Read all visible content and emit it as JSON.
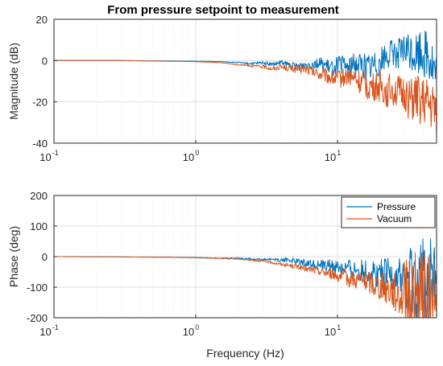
{
  "chart_data": [
    {
      "type": "line",
      "title": "From pressure setpoint to measurement",
      "xlabel": "",
      "ylabel": "Magnitude (dB)",
      "xscale": "log",
      "xlim": [
        0.1,
        50
      ],
      "ylim": [
        -40,
        20
      ],
      "yticks": [
        20,
        0,
        -20,
        -40
      ],
      "xticks": [
        {
          "base": "10",
          "exp": "-1",
          "value": 0.1
        },
        {
          "base": "10",
          "exp": "0",
          "value": 1
        },
        {
          "base": "10",
          "exp": "1",
          "value": 10
        }
      ],
      "grid": true,
      "series": [
        {
          "color": "#0072BD",
          "x": [
            0.1,
            0.3,
            1,
            1.5,
            2,
            2.5,
            3,
            3.5,
            4,
            4.5,
            5,
            6,
            7,
            8,
            9,
            10,
            12,
            14,
            16,
            18,
            20,
            22,
            25,
            28,
            30,
            33,
            36,
            40,
            45,
            50
          ],
          "y": [
            0,
            0,
            -0.3,
            -0.5,
            -1,
            -1.5,
            -1,
            -2,
            -1,
            -2,
            -3,
            -2,
            -1,
            -2,
            -4,
            -2,
            -3,
            -1,
            -3,
            -2,
            0,
            2,
            4,
            3,
            5,
            4,
            3,
            5,
            2,
            -10
          ],
          "noise": [
            0,
            0,
            0,
            0,
            0.3,
            0.5,
            0.8,
            1,
            1.2,
            1.5,
            2,
            2.5,
            3,
            3.5,
            4,
            4.5,
            5,
            6,
            7,
            7,
            7,
            7,
            7,
            8,
            9,
            10,
            11,
            12,
            14,
            15
          ]
        },
        {
          "color": "#D95319",
          "x": [
            0.1,
            0.3,
            1,
            1.5,
            2,
            2.5,
            3,
            3.5,
            4,
            5,
            6,
            7,
            8,
            9,
            10,
            12,
            14,
            16,
            18,
            20,
            22,
            25,
            28,
            30,
            33,
            36,
            40,
            45,
            50
          ],
          "y": [
            0,
            0,
            -0.5,
            -1,
            -2,
            -2.5,
            -3,
            -4,
            -3,
            -4,
            -4,
            -6,
            -7,
            -8,
            -9,
            -7,
            -10,
            -12,
            -13,
            -12,
            -15,
            -13,
            -17,
            -15,
            -20,
            -18,
            -20,
            -22,
            -25
          ],
          "noise": [
            0,
            0,
            0,
            0,
            0.3,
            0.5,
            0.8,
            1,
            1.2,
            2,
            2.5,
            3,
            3.5,
            4,
            4.5,
            5,
            6,
            7,
            7,
            8,
            8,
            9,
            9,
            10,
            11,
            12,
            12,
            13,
            14
          ]
        }
      ]
    },
    {
      "type": "line",
      "xlabel": "Frequency (Hz)",
      "ylabel": "Phase (deg)",
      "xscale": "log",
      "xlim": [
        0.1,
        50
      ],
      "ylim": [
        -200,
        200
      ],
      "yticks": [
        200,
        100,
        0,
        -100,
        -200
      ],
      "xticks": [
        {
          "base": "10",
          "exp": "-1",
          "value": 0.1
        },
        {
          "base": "10",
          "exp": "0",
          "value": 1
        },
        {
          "base": "10",
          "exp": "1",
          "value": 10
        }
      ],
      "grid": true,
      "legend": {
        "placement": "top-right",
        "entries": [
          "Pressure",
          "Vacuum"
        ]
      },
      "series": [
        {
          "name": "Pressure",
          "color": "#0072BD",
          "x": [
            0.1,
            0.3,
            0.6,
            1,
            1.5,
            2,
            2.5,
            3,
            3.5,
            4,
            4.5,
            5,
            6,
            7,
            8,
            9,
            10,
            12,
            14,
            16,
            18,
            20,
            22,
            25,
            28,
            30,
            33,
            36,
            40,
            45,
            50
          ],
          "y": [
            0,
            -1,
            -2,
            -3,
            -5,
            -5,
            -8,
            -10,
            -8,
            -12,
            -10,
            -15,
            -20,
            -25,
            -30,
            -30,
            -35,
            -40,
            -45,
            -50,
            -50,
            -55,
            -60,
            -60,
            -70,
            -75,
            -80,
            -90,
            -100,
            -100,
            -110
          ],
          "noise": [
            0,
            0,
            0,
            0,
            1,
            2,
            3,
            4,
            5,
            6,
            8,
            10,
            12,
            15,
            18,
            22,
            25,
            30,
            35,
            40,
            45,
            50,
            55,
            60,
            70,
            90,
            120,
            150,
            170,
            180,
            180
          ]
        },
        {
          "name": "Vacuum",
          "color": "#D95319",
          "x": [
            0.1,
            0.3,
            0.6,
            1,
            1.5,
            2,
            2.5,
            3,
            3.5,
            4,
            4.5,
            5,
            6,
            7,
            8,
            9,
            10,
            12,
            14,
            16,
            18,
            20,
            22,
            25,
            28,
            30,
            33,
            36,
            40,
            45,
            50
          ],
          "y": [
            0,
            -1,
            -2,
            -4,
            -6,
            -8,
            -12,
            -15,
            -20,
            -25,
            -28,
            -32,
            -40,
            -45,
            -50,
            -55,
            -60,
            -70,
            -75,
            -80,
            -90,
            -95,
            -100,
            -110,
            -120,
            -130,
            -140,
            -150,
            -160,
            -170,
            -175
          ],
          "noise": [
            0,
            0,
            0,
            0,
            1,
            1,
            2,
            3,
            4,
            5,
            6,
            8,
            10,
            12,
            15,
            18,
            22,
            28,
            32,
            38,
            42,
            48,
            55,
            65,
            80,
            120,
            160,
            180,
            180,
            180,
            180
          ]
        }
      ]
    }
  ]
}
